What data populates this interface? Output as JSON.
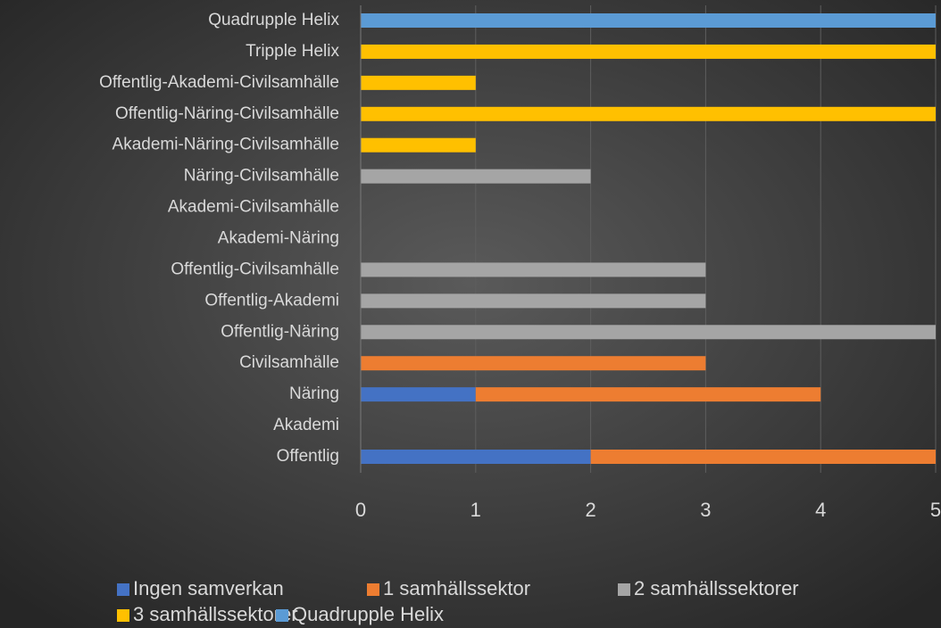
{
  "chart_data": {
    "type": "bar",
    "orientation": "horizontal",
    "stacked": true,
    "categories": [
      "Offentlig",
      "Akademi",
      "Näring",
      "Civilsamhälle",
      "Offentlig-Näring",
      "Offentlig-Akademi",
      "Offentlig-Civilsamhälle",
      "Akademi-Näring",
      "Akademi-Civilsamhälle",
      "Näring-Civilsamhälle",
      "Akademi-Näring-Civilsamhälle",
      "Offentlig-Näring-Civilsamhälle",
      "Offentlig-Akademi-Civilsamhälle",
      "Tripple Helix",
      "Quadrupple Helix"
    ],
    "series": [
      {
        "name": "Ingen samverkan",
        "color": "#4472c4",
        "values": [
          2,
          0,
          1,
          0,
          0,
          0,
          0,
          0,
          0,
          0,
          0,
          0,
          0,
          0,
          0
        ]
      },
      {
        "name": "1 samhällssektor",
        "color": "#ed7d31",
        "values": [
          3,
          0,
          3,
          3,
          0,
          0,
          0,
          0,
          0,
          0,
          0,
          0,
          0,
          0,
          0
        ]
      },
      {
        "name": "2 samhällssektorer",
        "color": "#a5a5a5",
        "values": [
          0,
          0,
          0,
          0,
          5,
          3,
          3,
          0,
          0,
          2,
          0,
          0,
          0,
          0,
          0
        ]
      },
      {
        "name": "3 samhällssektorer",
        "color": "#ffc000",
        "values": [
          0,
          0,
          0,
          0,
          0,
          0,
          0,
          0,
          0,
          0,
          1,
          5,
          1,
          5,
          0
        ]
      },
      {
        "name": "Quadrupple Helix",
        "color": "#5b9bd5",
        "values": [
          0,
          0,
          0,
          0,
          0,
          0,
          0,
          0,
          0,
          0,
          0,
          0,
          0,
          0,
          5
        ]
      }
    ],
    "xlim": [
      0,
      5
    ],
    "xticks": [
      0,
      1,
      2,
      3,
      4,
      5
    ],
    "grid": true,
    "legend": "bottom"
  }
}
